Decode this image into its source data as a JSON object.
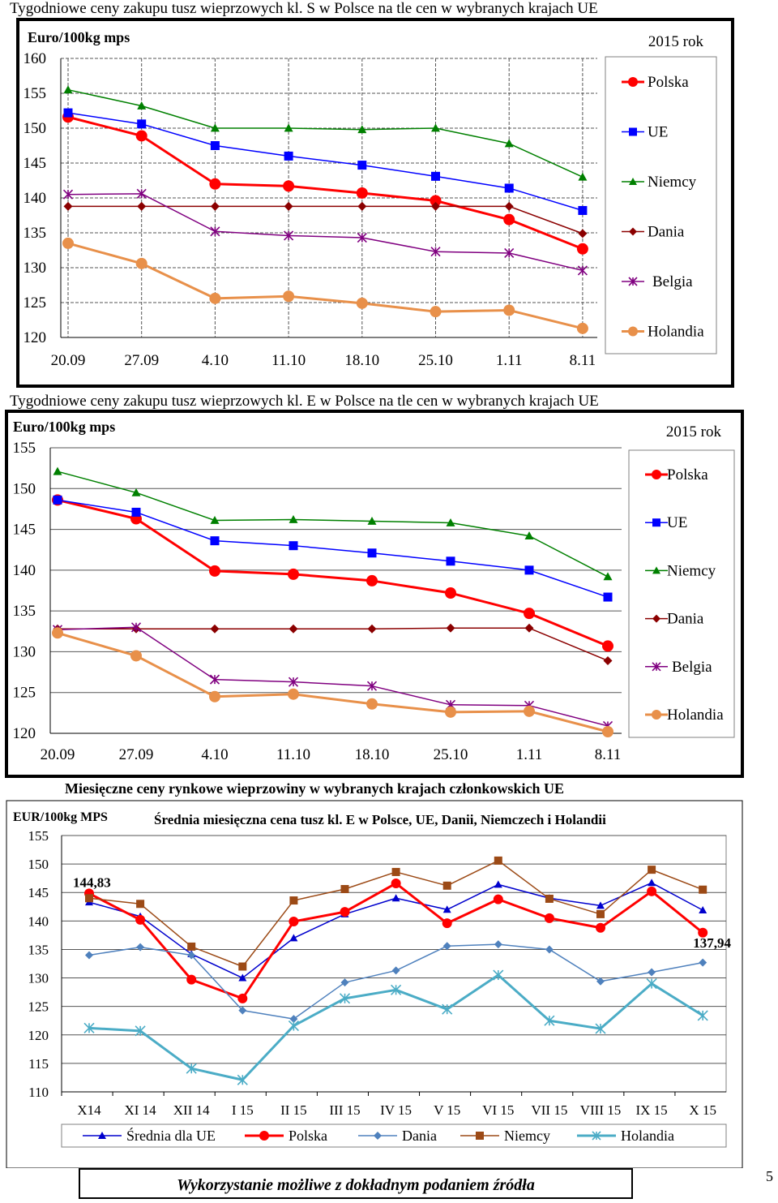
{
  "page": {
    "footer": "Wykorzystanie możliwe z dokładnym podaniem źródła",
    "page_number": "5"
  },
  "chart_data": [
    {
      "type": "line",
      "title": "Tygodniowe ceny zakupu tusz wieprzowych kl. S w Polsce na tle cen w wybranych krajach UE",
      "ylabel": "Euro/100kg  mps",
      "legend_title": "2015 rok",
      "categories": [
        "20.09",
        "27.09",
        "4.10",
        "11.10",
        "18.10",
        "25.10",
        "1.11",
        "8.11"
      ],
      "yticks": [
        "160",
        "155",
        "150",
        "145",
        "140",
        "135",
        "130",
        "125",
        "120"
      ],
      "ylim": [
        120,
        160
      ],
      "grid": "dashed",
      "legend_position": "right",
      "series": [
        {
          "name": "Polska",
          "color": "#ff0000",
          "marker": "circle",
          "values": [
            151.6,
            148.9,
            142.0,
            141.7,
            140.7,
            139.6,
            136.9,
            132.7
          ]
        },
        {
          "name": "UE",
          "color": "#0000ff",
          "marker": "square",
          "values": [
            152.2,
            150.6,
            147.5,
            146.0,
            144.7,
            143.1,
            141.4,
            138.2
          ]
        },
        {
          "name": "Niemcy",
          "color": "#008000",
          "marker": "triangle",
          "values": [
            155.5,
            153.2,
            150.0,
            150.0,
            149.8,
            150.0,
            147.8,
            143.0
          ]
        },
        {
          "name": "Dania",
          "color": "#8b0000",
          "marker": "diamond",
          "values": [
            138.8,
            138.8,
            138.8,
            138.8,
            138.8,
            138.8,
            138.8,
            134.9
          ]
        },
        {
          "name": "Belgia",
          "color": "#800080",
          "marker": "star",
          "values": [
            140.5,
            140.6,
            135.2,
            134.6,
            134.3,
            132.3,
            132.1,
            129.6
          ]
        },
        {
          "name": "Holandia",
          "color": "#e8904a",
          "marker": "circle",
          "values": [
            133.5,
            130.6,
            125.6,
            125.9,
            124.9,
            123.7,
            123.9,
            121.3
          ]
        }
      ]
    },
    {
      "type": "line",
      "title": "Tygodniowe ceny zakupu tusz wieprzowych kl. E w Polsce na tle cen w wybranych krajach UE",
      "ylabel": "Euro/100kg  mps",
      "legend_title": "2015 rok",
      "categories": [
        "20.09",
        "27.09",
        "4.10",
        "11.10",
        "18.10",
        "25.10",
        "1.11",
        "8.11"
      ],
      "yticks": [
        "155",
        "150",
        "145",
        "140",
        "135",
        "130",
        "125",
        "120"
      ],
      "ylim": [
        120,
        155
      ],
      "grid": "solid",
      "legend_position": "right",
      "series": [
        {
          "name": "Polska",
          "color": "#ff0000",
          "marker": "circle",
          "values": [
            148.6,
            146.3,
            139.9,
            139.5,
            138.7,
            137.2,
            134.7,
            130.7
          ]
        },
        {
          "name": "UE",
          "color": "#0000ff",
          "marker": "square",
          "values": [
            148.6,
            147.1,
            143.6,
            143.0,
            142.1,
            141.1,
            140.0,
            136.7
          ]
        },
        {
          "name": "Niemcy",
          "color": "#008000",
          "marker": "triangle",
          "values": [
            152.1,
            149.5,
            146.1,
            146.2,
            146.0,
            145.8,
            144.2,
            139.2
          ]
        },
        {
          "name": "Dania",
          "color": "#8b0000",
          "marker": "diamond",
          "values": [
            132.8,
            132.8,
            132.8,
            132.8,
            132.8,
            132.9,
            132.9,
            128.9
          ]
        },
        {
          "name": "Belgia",
          "color": "#800080",
          "marker": "star",
          "values": [
            132.7,
            133.0,
            126.6,
            126.3,
            125.8,
            123.5,
            123.4,
            120.9
          ]
        },
        {
          "name": "Holandia",
          "color": "#e8904a",
          "marker": "circle",
          "values": [
            132.3,
            129.5,
            124.5,
            124.8,
            123.6,
            122.6,
            122.7,
            120.2
          ]
        }
      ]
    },
    {
      "type": "line",
      "title": "Miesięczne ceny rynkowe wieprzowiny w wybranych krajach członkowskich UE",
      "subtitle": "Średnia miesięczna cena tusz kl. E w Polsce, UE, Danii, Niemczech i Holandii",
      "ylabel": "EUR/100kg MPS",
      "categories": [
        "X14",
        "XI 14",
        "XII 14",
        "I 15",
        "II 15",
        "III 15",
        "IV 15",
        "V 15",
        "VI 15",
        "VII 15",
        "VIII 15",
        "IX 15",
        "X 15"
      ],
      "yticks": [
        "155",
        "150",
        "145",
        "140",
        "135",
        "130",
        "125",
        "120",
        "115",
        "110"
      ],
      "ylim": [
        110,
        155
      ],
      "grid": "solid",
      "legend_position": "bottom",
      "annotations": [
        {
          "text": "144,83",
          "series": "Polska",
          "index": 0
        },
        {
          "text": "137,94",
          "series": "Polska",
          "index": 12
        }
      ],
      "series": [
        {
          "name": "Średnia dla  UE",
          "color": "#0000cd",
          "marker": "triangle",
          "values": [
            143.3,
            140.8,
            134.2,
            130.0,
            137.0,
            141.2,
            144.0,
            142.0,
            146.4,
            144.0,
            142.7,
            146.7,
            141.9
          ]
        },
        {
          "name": "Polska",
          "color": "#ff0000",
          "marker": "circle",
          "values": [
            144.83,
            140.2,
            129.7,
            126.4,
            139.9,
            141.6,
            146.6,
            139.6,
            143.8,
            140.5,
            138.8,
            145.2,
            137.94
          ]
        },
        {
          "name": "Dania",
          "color": "#4f81bd",
          "marker": "diamond",
          "values": [
            134.0,
            135.4,
            134.0,
            124.3,
            122.8,
            129.2,
            131.3,
            135.6,
            135.9,
            135.0,
            129.4,
            131.0,
            132.7
          ]
        },
        {
          "name": "Niemcy",
          "color": "#9c4a16",
          "marker": "square",
          "values": [
            144.0,
            143.0,
            135.5,
            132.0,
            143.6,
            145.6,
            148.6,
            146.2,
            150.6,
            143.9,
            141.2,
            149.0,
            145.5
          ]
        },
        {
          "name": "Holandia",
          "color": "#4bacc6",
          "marker": "star",
          "values": [
            121.2,
            120.7,
            114.1,
            112.1,
            121.6,
            126.4,
            127.9,
            124.5,
            130.5,
            122.5,
            121.1,
            129.0,
            123.4
          ]
        }
      ]
    }
  ]
}
